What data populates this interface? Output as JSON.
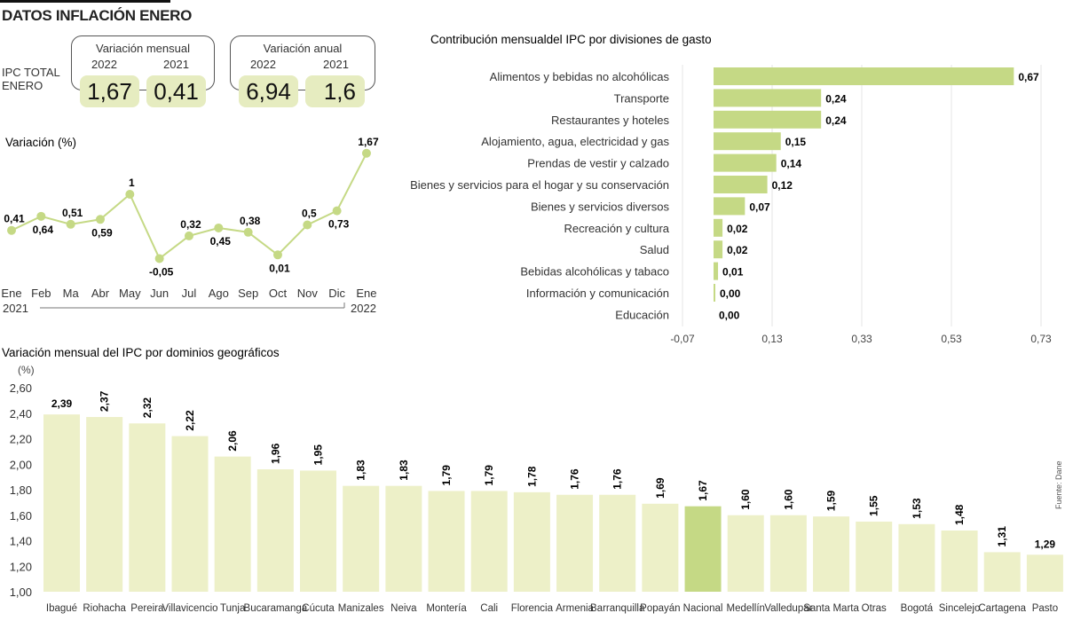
{
  "header": {
    "title": "DATOS INFLACIÓN ENERO"
  },
  "summary": {
    "label_line1": "IPC TOTAL",
    "label_line2": "ENERO",
    "monthly": {
      "title": "Variación mensual",
      "year_a": "2022",
      "year_b": "2021",
      "value_a": "1,67",
      "value_b": "0,41"
    },
    "annual": {
      "title": "Variación anual",
      "year_a": "2022",
      "year_b": "2021",
      "value_a": "6,94",
      "value_b": "1,6"
    }
  },
  "colors": {
    "light_bar": "#edf0c8",
    "accent_bar": "#c5d985",
    "line": "#c5d985"
  },
  "chart_data": [
    {
      "type": "line",
      "title": "Variación (%)",
      "categories": [
        "Ene",
        "Feb",
        "Ma",
        "Abr",
        "May",
        "Jun",
        "Jul",
        "Ago",
        "Sep",
        "Oct",
        "Nov",
        "Dic",
        "Ene"
      ],
      "values": [
        0.41,
        0.64,
        0.51,
        0.59,
        1,
        -0.05,
        0.32,
        0.45,
        0.38,
        0.01,
        0.5,
        0.73,
        1.67
      ],
      "labels": [
        "0,41",
        "0,64",
        "0,51",
        "0,59",
        "1",
        "-0,05",
        "0,32",
        "0,45",
        "0,38",
        "0,01",
        "0,5",
        "0,73",
        "1,67"
      ],
      "year_start": "2021",
      "year_end": "2022",
      "grid": false
    },
    {
      "type": "bar",
      "orientation": "horizontal",
      "title": "Contribución mensualdel IPC por divisiones de gasto",
      "categories": [
        "Alimentos y bebidas no alcohólicas",
        "Transporte",
        "Restaurantes y hoteles",
        "Alojamiento, agua, electricidad y gas",
        "Prendas de vestir y calzado",
        "Bienes y servicios para el hogar y su conservación",
        "Bienes y servicios diversos",
        "Recreación y cultura",
        "Salud",
        "Bebidas alcohólicas y tabaco",
        "Información y comunicación",
        "Educación"
      ],
      "values": [
        0.67,
        0.24,
        0.24,
        0.15,
        0.14,
        0.12,
        0.07,
        0.02,
        0.02,
        0.01,
        0.0,
        0.0
      ],
      "labels": [
        "0,67",
        "0,24",
        "0,24",
        "0,15",
        "0,14",
        "0,12",
        "0,07",
        "0,02",
        "0,02",
        "0,01",
        "0,00",
        "0,00"
      ],
      "xlim": [
        -0.07,
        0.73
      ],
      "xticks": [
        "-0,07",
        "0,13",
        "0,33",
        "0,53",
        "0,73"
      ],
      "xtick_values": [
        -0.07,
        0.13,
        0.33,
        0.53,
        0.73
      ],
      "grid": true
    },
    {
      "type": "bar",
      "orientation": "vertical",
      "title": "Variación mensual del IPC por dominios geográficos",
      "ylabel": "(%)",
      "categories": [
        "Ibagué",
        "Riohacha",
        "Pereira",
        "Villavicencio",
        "Tunja",
        "Bucaramanga",
        "Cúcuta",
        "Manizales",
        "Neiva",
        "Montería",
        "Cali",
        "Florencia",
        "Armenia",
        "Barranquilla",
        "Popayán",
        "Nacional",
        "Medellín",
        "Valledupar",
        "Santa Marta",
        "Otras",
        "Bogotá",
        "Sincelejo",
        "Cartagena",
        "Pasto"
      ],
      "values": [
        2.39,
        2.37,
        2.32,
        2.22,
        2.06,
        1.96,
        1.95,
        1.83,
        1.83,
        1.79,
        1.79,
        1.78,
        1.76,
        1.76,
        1.69,
        1.67,
        1.6,
        1.6,
        1.59,
        1.55,
        1.53,
        1.48,
        1.31,
        1.29
      ],
      "labels": [
        "2,39",
        "2,37",
        "2,32",
        "2,22",
        "2,06",
        "1,96",
        "1,95",
        "1,83",
        "1,83",
        "1,79",
        "1,79",
        "1,78",
        "1,76",
        "1,76",
        "1,69",
        "1,67",
        "1,60",
        "1,60",
        "1,59",
        "1,55",
        "1,53",
        "1,48",
        "1,31",
        "1,29"
      ],
      "highlight": "Nacional",
      "ylim": [
        1.0,
        2.6
      ],
      "yticks": [
        "1,00",
        "1,20",
        "1,40",
        "1,60",
        "1,80",
        "2,00",
        "2,20",
        "2,40",
        "2,60"
      ],
      "ytick_values": [
        1.0,
        1.2,
        1.4,
        1.6,
        1.8,
        2.0,
        2.2,
        2.4,
        2.6
      ],
      "grid": false
    }
  ],
  "source": "Fuente: Dane"
}
